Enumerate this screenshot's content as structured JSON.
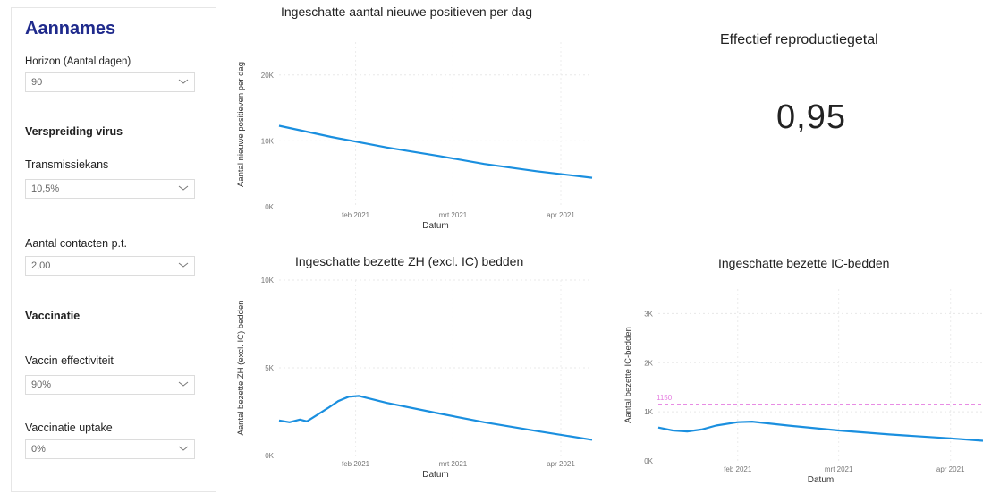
{
  "sidebar": {
    "title": "Aannames",
    "horizon": {
      "label": "Horizon (Aantal dagen)",
      "value": "90"
    },
    "section_spread": "Verspreiding virus",
    "transmission": {
      "label": "Transmissiekans",
      "value": "10,5%"
    },
    "contacts": {
      "label": "Aantal contacten p.t.",
      "value": "2,00"
    },
    "section_vacc": "Vaccinatie",
    "vacc_eff": {
      "label": "Vaccin effectiviteit",
      "value": "90%"
    },
    "vacc_uptake": {
      "label": "Vaccinatie uptake",
      "value": "0%"
    }
  },
  "kpi": {
    "title": "Effectief reproductiegetal",
    "value": "0,95"
  },
  "colors": {
    "accent": "#1f2a8c",
    "line": "#1a8fdf",
    "threshold": "#e57ce0"
  },
  "chart_data": [
    {
      "type": "line",
      "title": "Ingeschatte aantal nieuwe positieven per dag",
      "xlabel": "Datum",
      "ylabel": "Aantal nieuwe positieven per dag",
      "x_ticks": [
        "feb 2021",
        "mrt 2021",
        "apr 2021"
      ],
      "y_ticks": [
        "0K",
        "10K",
        "20K"
      ],
      "ylim": [
        0,
        25000
      ],
      "xlim": [
        "2021-01-10",
        "2021-04-10"
      ],
      "x": [
        "2021-01-10",
        "2021-01-25",
        "2021-02-10",
        "2021-02-25",
        "2021-03-10",
        "2021-03-25",
        "2021-04-10"
      ],
      "y": [
        12300,
        10600,
        9000,
        7700,
        6500,
        5400,
        4400
      ]
    },
    {
      "type": "line",
      "title": "Ingeschatte bezette ZH (excl. IC) bedden",
      "xlabel": "Datum",
      "ylabel": "Aantal bezette ZH (excl. IC) bedden",
      "x_ticks": [
        "feb 2021",
        "mrt 2021",
        "apr 2021"
      ],
      "y_ticks": [
        "0K",
        "5K",
        "10K"
      ],
      "ylim": [
        0,
        10000
      ],
      "xlim": [
        "2021-01-10",
        "2021-04-10"
      ],
      "x": [
        "2021-01-10",
        "2021-01-13",
        "2021-01-16",
        "2021-01-18",
        "2021-01-20",
        "2021-01-24",
        "2021-01-27",
        "2021-01-30",
        "2021-02-02",
        "2021-02-10",
        "2021-02-25",
        "2021-03-10",
        "2021-03-25",
        "2021-04-10"
      ],
      "y": [
        2000,
        1900,
        2050,
        1950,
        2200,
        2700,
        3100,
        3350,
        3400,
        3000,
        2400,
        1900,
        1400,
        900
      ]
    },
    {
      "type": "line",
      "title": "Ingeschatte bezette IC-bedden",
      "xlabel": "Datum",
      "ylabel": "Aantal bezette IC-bedden",
      "x_ticks": [
        "feb 2021",
        "mrt 2021",
        "apr 2021"
      ],
      "y_ticks": [
        "0K",
        "1K",
        "2K",
        "3K"
      ],
      "ylim": [
        0,
        3500
      ],
      "xlim": [
        "2021-01-10",
        "2021-04-10"
      ],
      "threshold": {
        "label": "1150",
        "value": 1150
      },
      "x": [
        "2021-01-10",
        "2021-01-14",
        "2021-01-18",
        "2021-01-22",
        "2021-01-26",
        "2021-02-01",
        "2021-02-05",
        "2021-02-15",
        "2021-03-01",
        "2021-03-15",
        "2021-04-01",
        "2021-04-10"
      ],
      "y": [
        680,
        620,
        600,
        640,
        720,
        790,
        800,
        720,
        620,
        540,
        460,
        410
      ]
    }
  ]
}
